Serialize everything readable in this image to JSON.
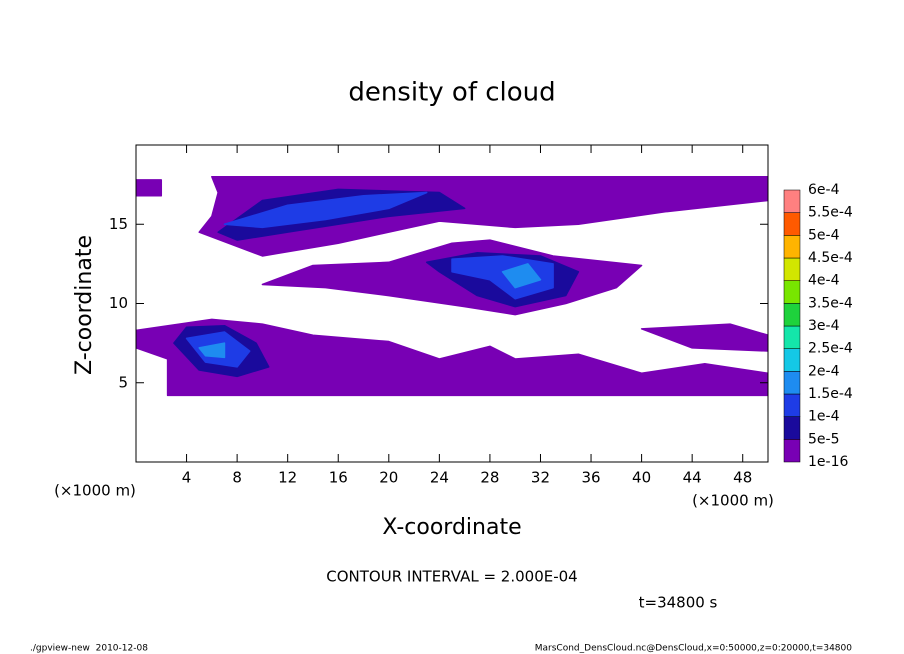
{
  "chart_data": {
    "type": "contour",
    "title": "density of cloud",
    "xlabel": "X-coordinate",
    "ylabel": "Z-coordinate",
    "x_unit": "(×1000 m)",
    "y_unit": "(×1000 m)",
    "annotation": "CONTOUR INTERVAL = 2.000E-04",
    "time_label": "t=34800 s",
    "footer_left": "./gpview-new  2010-12-08",
    "footer_right": "MarsCond_DensCloud.nc@DensCloud,x=0:50000,z=0:20000,t=34800",
    "xlim": [
      0,
      50
    ],
    "ylim": [
      0,
      20
    ],
    "xticks": [
      4,
      8,
      12,
      16,
      20,
      24,
      28,
      32,
      36,
      40,
      44,
      48
    ],
    "yticks": [
      5,
      10,
      15
    ],
    "colorbar": {
      "levels": [
        {
          "value": 1e-16,
          "label": "1e-16"
        },
        {
          "value": 5e-05,
          "label": "5e-5"
        },
        {
          "value": 0.0001,
          "label": "1e-4"
        },
        {
          "value": 0.00015,
          "label": "1.5e-4"
        },
        {
          "value": 0.0002,
          "label": "2e-4"
        },
        {
          "value": 0.00025,
          "label": "2.5e-4"
        },
        {
          "value": 0.0003,
          "label": "3e-4"
        },
        {
          "value": 0.00035,
          "label": "3.5e-4"
        },
        {
          "value": 0.0004,
          "label": "4e-4"
        },
        {
          "value": 0.00045,
          "label": "4.5e-4"
        },
        {
          "value": 0.0005,
          "label": "5e-4"
        },
        {
          "value": 0.00055,
          "label": "5.5e-4"
        },
        {
          "value": 0.0006,
          "label": "6e-4"
        }
      ],
      "colors": [
        "#7800b4",
        "#1a0a9c",
        "#1e3ce6",
        "#1e8cf0",
        "#14c8e6",
        "#14e6aa",
        "#1ed23c",
        "#78e600",
        "#d2e600",
        "#ffb400",
        "#ff5a00",
        "#ff8080"
      ]
    },
    "regions": [
      {
        "level": 1e-16,
        "points": [
          [
            2.5,
            4.2
          ],
          [
            50,
            4.2
          ],
          [
            50,
            5.6
          ],
          [
            45,
            6.2
          ],
          [
            40,
            5.6
          ],
          [
            35,
            6.8
          ],
          [
            30,
            6.5
          ],
          [
            28,
            7.3
          ],
          [
            24,
            6.5
          ],
          [
            20,
            7.6
          ],
          [
            14,
            8.0
          ],
          [
            10,
            8.7
          ],
          [
            6,
            9.0
          ],
          [
            0,
            8.3
          ],
          [
            0,
            7.2
          ],
          [
            2.5,
            6.5
          ]
        ]
      },
      {
        "level": 1e-16,
        "points": [
          [
            6,
            15.5
          ],
          [
            6.5,
            17
          ],
          [
            6,
            18
          ],
          [
            50,
            18
          ],
          [
            50,
            16.5
          ],
          [
            42,
            15.8
          ],
          [
            35,
            15.0
          ],
          [
            30,
            14.8
          ],
          [
            24,
            15.2
          ],
          [
            20,
            14.5
          ],
          [
            16,
            13.8
          ],
          [
            10,
            13.0
          ],
          [
            5,
            14.5
          ]
        ]
      },
      {
        "level": 1e-16,
        "points": [
          [
            0,
            16.8
          ],
          [
            2,
            16.8
          ],
          [
            2,
            17.8
          ],
          [
            0,
            17.8
          ]
        ]
      },
      {
        "level": 1e-16,
        "points": [
          [
            20,
            12.6
          ],
          [
            25,
            13.8
          ],
          [
            28,
            14.0
          ],
          [
            33,
            13.0
          ],
          [
            40,
            12.4
          ],
          [
            38,
            11.0
          ],
          [
            34,
            10.0
          ],
          [
            30,
            9.3
          ],
          [
            26,
            9.8
          ],
          [
            20,
            10.5
          ],
          [
            15,
            11.0
          ],
          [
            10,
            11.2
          ],
          [
            14,
            12.4
          ]
        ]
      },
      {
        "level": 1e-16,
        "points": [
          [
            40,
            8.4
          ],
          [
            47,
            8.7
          ],
          [
            50,
            8.0
          ],
          [
            50,
            7.0
          ],
          [
            44,
            7.2
          ]
        ]
      },
      {
        "level": 5e-05,
        "points": [
          [
            6.5,
            14.5
          ],
          [
            10,
            16.5
          ],
          [
            16,
            17.2
          ],
          [
            24,
            17.0
          ],
          [
            26,
            16.0
          ],
          [
            20,
            15.5
          ],
          [
            16,
            15.0
          ],
          [
            12,
            14.5
          ],
          [
            8,
            14.0
          ]
        ]
      },
      {
        "level": 5e-05,
        "points": [
          [
            23,
            12.6
          ],
          [
            27,
            13.2
          ],
          [
            32,
            13.0
          ],
          [
            35,
            12.0
          ],
          [
            34,
            10.5
          ],
          [
            30,
            9.8
          ],
          [
            27,
            10.5
          ],
          [
            24,
            12.0
          ]
        ]
      },
      {
        "level": 5e-05,
        "points": [
          [
            3,
            7.5
          ],
          [
            4,
            8.5
          ],
          [
            7,
            8.6
          ],
          [
            9.5,
            7.5
          ],
          [
            10.5,
            6.0
          ],
          [
            8,
            5.4
          ],
          [
            5,
            5.8
          ]
        ]
      },
      {
        "level": 0.0001,
        "points": [
          [
            7,
            15.0
          ],
          [
            12,
            16.2
          ],
          [
            18,
            16.8
          ],
          [
            23,
            17.0
          ],
          [
            20,
            16.0
          ],
          [
            15,
            15.3
          ],
          [
            10,
            14.8
          ]
        ]
      },
      {
        "level": 0.0001,
        "points": [
          [
            25,
            12.8
          ],
          [
            29,
            13.0
          ],
          [
            33,
            12.5
          ],
          [
            33,
            11.0
          ],
          [
            30,
            10.3
          ],
          [
            28,
            11.5
          ],
          [
            25,
            12.0
          ]
        ]
      },
      {
        "level": 0.0001,
        "points": [
          [
            4,
            7.8
          ],
          [
            7,
            8.2
          ],
          [
            9,
            7.0
          ],
          [
            8,
            6.0
          ],
          [
            5.5,
            6.3
          ]
        ]
      },
      {
        "level": 0.00015,
        "points": [
          [
            29,
            12.0
          ],
          [
            31,
            12.5
          ],
          [
            32,
            11.5
          ],
          [
            30,
            11.0
          ]
        ]
      },
      {
        "level": 0.00015,
        "points": [
          [
            5,
            7.2
          ],
          [
            7,
            7.5
          ],
          [
            7,
            6.6
          ],
          [
            5.5,
            6.7
          ]
        ]
      }
    ]
  }
}
